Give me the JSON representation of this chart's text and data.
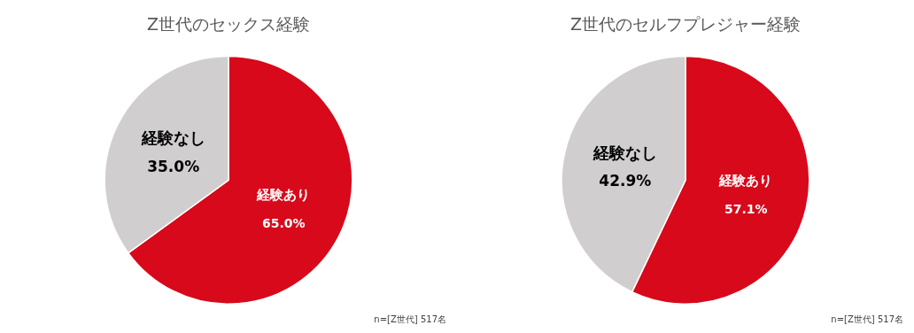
{
  "chart_data": [
    {
      "type": "pie",
      "title": "Z世代のセックス経験",
      "categories": [
        "経験あり",
        "経験なし"
      ],
      "values": [
        65.0,
        35.0
      ],
      "value_labels": [
        "65.0%",
        "35.0%"
      ],
      "colors": [
        "#d7091a",
        "#d0cecf"
      ],
      "legend": false,
      "annotations": [
        "n=[Z世代] 517名"
      ]
    },
    {
      "type": "pie",
      "title": "Z世代のセルフプレジャー経験",
      "categories": [
        "経験あり",
        "経験なし"
      ],
      "values": [
        57.1,
        42.9
      ],
      "value_labels": [
        "57.1%",
        "42.9%"
      ],
      "colors": [
        "#d7091a",
        "#d0cecf"
      ],
      "legend": false,
      "annotations": [
        "n=[Z世代] 517名"
      ]
    }
  ]
}
